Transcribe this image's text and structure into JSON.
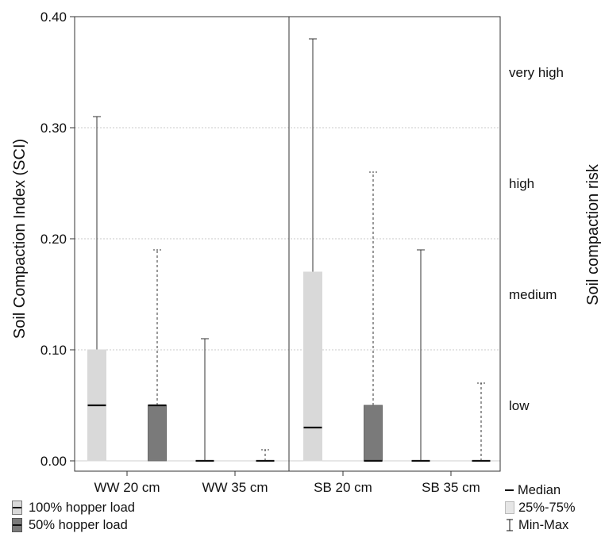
{
  "chart_data": {
    "type": "boxplot",
    "ylabel": "Soil Compaction Index (SCI)",
    "right_label": "Soil compaction risk",
    "ylim": [
      0,
      0.4
    ],
    "yticks": [
      "0.00",
      "0.10",
      "0.20",
      "0.30",
      "0.40"
    ],
    "ytick_values": [
      0,
      0.1,
      0.2,
      0.3,
      0.4
    ],
    "grid": true,
    "risk_levels": [
      {
        "label": "low",
        "value": 0.05
      },
      {
        "label": "medium",
        "value": 0.15
      },
      {
        "label": "high",
        "value": 0.25
      },
      {
        "label": "very high",
        "value": 0.35
      }
    ],
    "groups": [
      {
        "label": "WW 20 cm",
        "boxes": [
          {
            "series": "100% hopper load",
            "min": 0,
            "q1": 0,
            "median": 0.05,
            "q3": 0.1,
            "max": 0.31
          },
          {
            "series": "50% hopper load",
            "min": 0,
            "q1": 0,
            "median": 0.05,
            "q3": 0.05,
            "max": 0.19
          }
        ]
      },
      {
        "label": "WW 35 cm",
        "boxes": [
          {
            "series": "100% hopper load",
            "min": 0,
            "q1": 0,
            "median": 0,
            "q3": 0,
            "max": 0.11
          },
          {
            "series": "50% hopper load",
            "min": 0,
            "q1": 0,
            "median": 0,
            "q3": 0,
            "max": 0.01
          }
        ]
      },
      {
        "label": "SB 20 cm",
        "boxes": [
          {
            "series": "100% hopper load",
            "min": 0,
            "q1": 0,
            "median": 0.03,
            "q3": 0.17,
            "max": 0.38
          },
          {
            "series": "50% hopper load",
            "min": 0,
            "q1": 0,
            "median": 0,
            "q3": 0.05,
            "max": 0.26
          }
        ]
      },
      {
        "label": "SB 35 cm",
        "boxes": [
          {
            "series": "100% hopper load",
            "min": 0,
            "q1": 0,
            "median": 0,
            "q3": 0,
            "max": 0.19
          },
          {
            "series": "50% hopper load",
            "min": 0,
            "q1": 0,
            "median": 0,
            "q3": 0,
            "max": 0.07
          }
        ]
      }
    ],
    "series": [
      {
        "name": "100% hopper load",
        "color": "#d9d9d9",
        "whisker": "solid"
      },
      {
        "name": "50% hopper load",
        "color": "#7a7a7a",
        "whisker": "dashed"
      }
    ],
    "key": {
      "median": "Median",
      "box": "25%-75%",
      "range": "Min-Max"
    }
  }
}
